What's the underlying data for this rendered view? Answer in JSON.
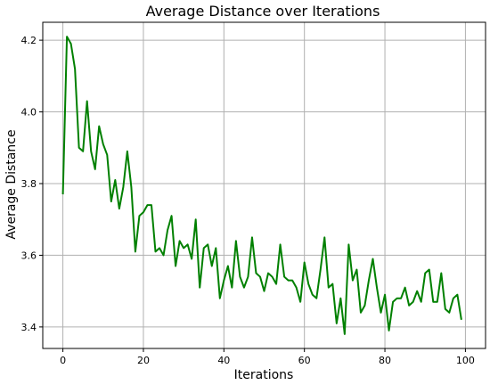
{
  "chart_data": {
    "type": "line",
    "title": "Average Distance over Iterations",
    "xlabel": "Iterations",
    "ylabel": "Average Distance",
    "xlim": [
      -5,
      105
    ],
    "ylim": [
      3.34,
      4.25
    ],
    "xticks": [
      0,
      20,
      40,
      60,
      80,
      100
    ],
    "yticks": [
      3.4,
      3.6,
      3.8,
      4.0,
      4.2
    ],
    "xtick_labels": [
      "0",
      "20",
      "40",
      "60",
      "80",
      "100"
    ],
    "ytick_labels": [
      "3.4",
      "3.6",
      "3.8",
      "4.0",
      "4.2"
    ],
    "grid": true,
    "series": [
      {
        "color": "#008000",
        "x": [
          0,
          1,
          2,
          3,
          4,
          5,
          6,
          7,
          8,
          9,
          10,
          11,
          12,
          13,
          14,
          15,
          16,
          17,
          18,
          19,
          20,
          21,
          22,
          23,
          24,
          25,
          26,
          27,
          28,
          29,
          30,
          31,
          32,
          33,
          34,
          35,
          36,
          37,
          38,
          39,
          40,
          41,
          42,
          43,
          44,
          45,
          46,
          47,
          48,
          49,
          50,
          51,
          52,
          53,
          54,
          55,
          56,
          57,
          58,
          59,
          60,
          61,
          62,
          63,
          64,
          65,
          66,
          67,
          68,
          69,
          70,
          71,
          72,
          73,
          74,
          75,
          76,
          77,
          78,
          79,
          80,
          81,
          82,
          83,
          84,
          85,
          86,
          87,
          88,
          89,
          90,
          91,
          92,
          93,
          94,
          95,
          96,
          97,
          98,
          99
        ],
        "values": [
          3.77,
          4.21,
          4.19,
          4.12,
          3.9,
          3.89,
          4.03,
          3.89,
          3.84,
          3.96,
          3.91,
          3.88,
          3.75,
          3.81,
          3.73,
          3.79,
          3.89,
          3.79,
          3.61,
          3.71,
          3.72,
          3.74,
          3.74,
          3.61,
          3.62,
          3.6,
          3.67,
          3.71,
          3.57,
          3.64,
          3.62,
          3.63,
          3.59,
          3.7,
          3.51,
          3.62,
          3.63,
          3.57,
          3.62,
          3.48,
          3.53,
          3.57,
          3.51,
          3.64,
          3.54,
          3.51,
          3.54,
          3.65,
          3.55,
          3.54,
          3.5,
          3.55,
          3.54,
          3.52,
          3.63,
          3.54,
          3.53,
          3.53,
          3.51,
          3.47,
          3.58,
          3.52,
          3.49,
          3.48,
          3.56,
          3.65,
          3.51,
          3.52,
          3.41,
          3.48,
          3.38,
          3.63,
          3.53,
          3.56,
          3.44,
          3.46,
          3.53,
          3.59,
          3.51,
          3.44,
          3.49,
          3.39,
          3.47,
          3.48,
          3.48,
          3.51,
          3.46,
          3.47,
          3.5,
          3.47,
          3.55,
          3.56,
          3.47,
          3.47,
          3.55,
          3.45,
          3.44,
          3.48,
          3.49,
          3.42
        ]
      }
    ]
  }
}
